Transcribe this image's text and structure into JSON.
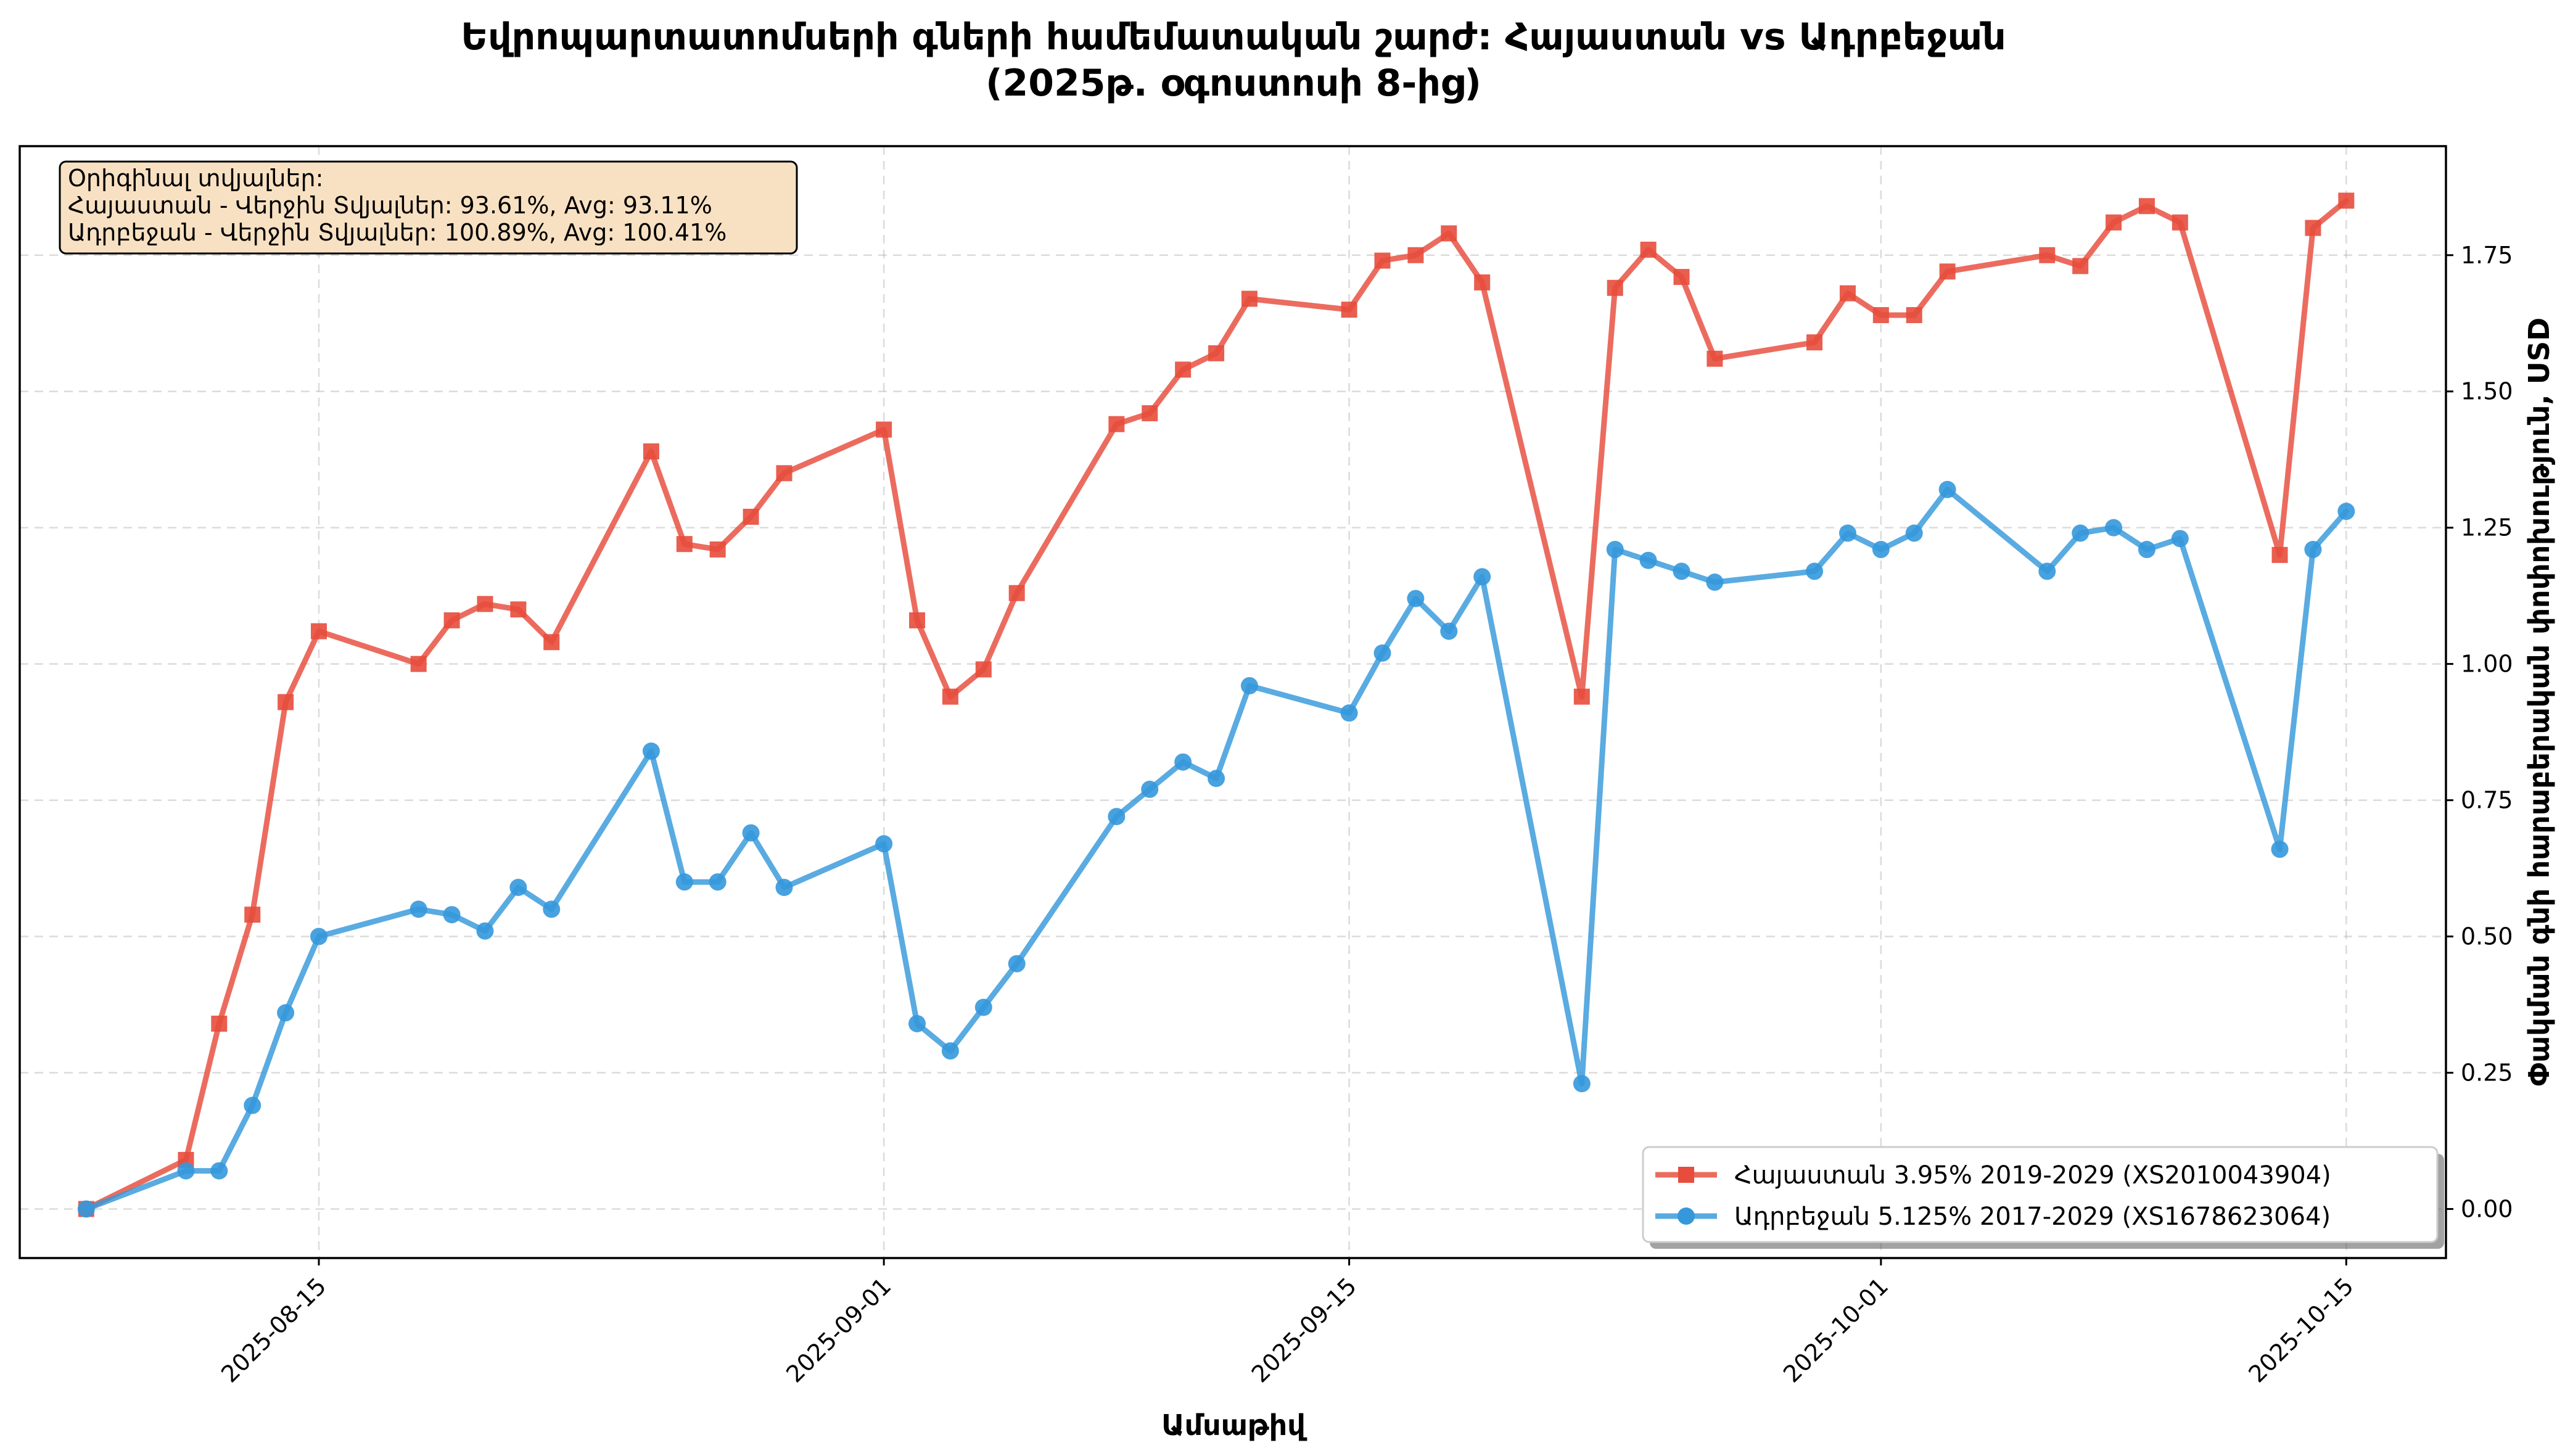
{
  "chart_data": {
    "type": "line",
    "title_line1": "Եվրոպարտատոմսերի գների համեմատական շարժ: Հայաստան vs Ադրբեջան",
    "title_line2": "(2025թ. օգոստոսի 8-ից)",
    "xlabel": "Ամսաթիվ",
    "ylabel": "Փակման գնի հարաբերական փոփոխություն, USD",
    "y_axis_side": "right",
    "ylim": [
      -0.09,
      1.95
    ],
    "xlim": [
      "2025-08-06",
      "2025-10-18"
    ],
    "x_ticks": [
      "2025-08-15",
      "2025-09-01",
      "2025-09-15",
      "2025-10-01",
      "2025-10-15"
    ],
    "y_ticks": [
      0.0,
      0.25,
      0.5,
      0.75,
      1.0,
      1.25,
      1.5,
      1.75
    ],
    "y_tick_labels": [
      "0.00",
      "0.25",
      "0.50",
      "0.75",
      "1.00",
      "1.25",
      "1.50",
      "1.75"
    ],
    "grid": true,
    "legend_position": "bottom-right",
    "info_box": {
      "line1": "Օրիգինալ տվյալներ:",
      "line2": "Հայաստան - Վերջին Տվյալներ: 93.61%, Avg: 93.11%",
      "line3": "Ադրբեջան - Վերջին Տվյալներ: 100.89%, Avg: 100.41%"
    },
    "series": [
      {
        "name": "Հայաստան 3.95% 2019-2029 (XS2010043904)",
        "color": "#e74c3c",
        "marker": "square",
        "x": [
          "2025-08-08",
          "2025-08-11",
          "2025-08-12",
          "2025-08-13",
          "2025-08-14",
          "2025-08-15",
          "2025-08-18",
          "2025-08-19",
          "2025-08-20",
          "2025-08-21",
          "2025-08-22",
          "2025-08-25",
          "2025-08-26",
          "2025-08-27",
          "2025-08-28",
          "2025-08-29",
          "2025-09-01",
          "2025-09-02",
          "2025-09-03",
          "2025-09-04",
          "2025-09-05",
          "2025-09-08",
          "2025-09-09",
          "2025-09-10",
          "2025-09-11",
          "2025-09-12",
          "2025-09-15",
          "2025-09-16",
          "2025-09-17",
          "2025-09-18",
          "2025-09-19",
          "2025-09-22",
          "2025-09-23",
          "2025-09-24",
          "2025-09-25",
          "2025-09-26",
          "2025-09-29",
          "2025-09-30",
          "2025-10-01",
          "2025-10-02",
          "2025-10-03",
          "2025-10-06",
          "2025-10-07",
          "2025-10-08",
          "2025-10-09",
          "2025-10-10",
          "2025-10-13",
          "2025-10-14",
          "2025-10-15"
        ],
        "values": [
          0.0,
          0.09,
          0.34,
          0.54,
          0.93,
          1.06,
          1.0,
          1.08,
          1.11,
          1.1,
          1.04,
          1.39,
          1.22,
          1.21,
          1.27,
          1.35,
          1.43,
          1.08,
          0.94,
          0.99,
          1.13,
          1.44,
          1.46,
          1.54,
          1.57,
          1.67,
          1.65,
          1.74,
          1.75,
          1.79,
          1.7,
          0.94,
          1.69,
          1.76,
          1.71,
          1.56,
          1.59,
          1.68,
          1.64,
          1.64,
          1.72,
          1.75,
          1.73,
          1.81,
          1.84,
          1.81,
          1.2,
          1.8,
          1.85
        ]
      },
      {
        "name": "Ադրբեջան 5.125% 2017-2029 (XS1678623064)",
        "color": "#3498db",
        "marker": "circle",
        "x": [
          "2025-08-08",
          "2025-08-11",
          "2025-08-12",
          "2025-08-13",
          "2025-08-14",
          "2025-08-15",
          "2025-08-18",
          "2025-08-19",
          "2025-08-20",
          "2025-08-21",
          "2025-08-22",
          "2025-08-25",
          "2025-08-26",
          "2025-08-27",
          "2025-08-28",
          "2025-08-29",
          "2025-09-01",
          "2025-09-02",
          "2025-09-03",
          "2025-09-04",
          "2025-09-05",
          "2025-09-08",
          "2025-09-09",
          "2025-09-10",
          "2025-09-11",
          "2025-09-12",
          "2025-09-15",
          "2025-09-16",
          "2025-09-17",
          "2025-09-18",
          "2025-09-19",
          "2025-09-22",
          "2025-09-23",
          "2025-09-24",
          "2025-09-25",
          "2025-09-26",
          "2025-09-29",
          "2025-09-30",
          "2025-10-01",
          "2025-10-02",
          "2025-10-03",
          "2025-10-06",
          "2025-10-07",
          "2025-10-08",
          "2025-10-09",
          "2025-10-10",
          "2025-10-13",
          "2025-10-14",
          "2025-10-15"
        ],
        "values": [
          0.0,
          0.07,
          0.07,
          0.19,
          0.36,
          0.5,
          0.55,
          0.54,
          0.51,
          0.59,
          0.55,
          0.84,
          0.6,
          0.6,
          0.69,
          0.59,
          0.67,
          0.34,
          0.29,
          0.37,
          0.45,
          0.72,
          0.77,
          0.82,
          0.79,
          0.96,
          0.91,
          1.02,
          1.12,
          1.06,
          1.16,
          0.23,
          1.21,
          1.19,
          1.17,
          1.15,
          1.17,
          1.24,
          1.21,
          1.24,
          1.32,
          1.17,
          1.24,
          1.25,
          1.21,
          1.23,
          0.66,
          1.21,
          1.28
        ]
      }
    ]
  }
}
